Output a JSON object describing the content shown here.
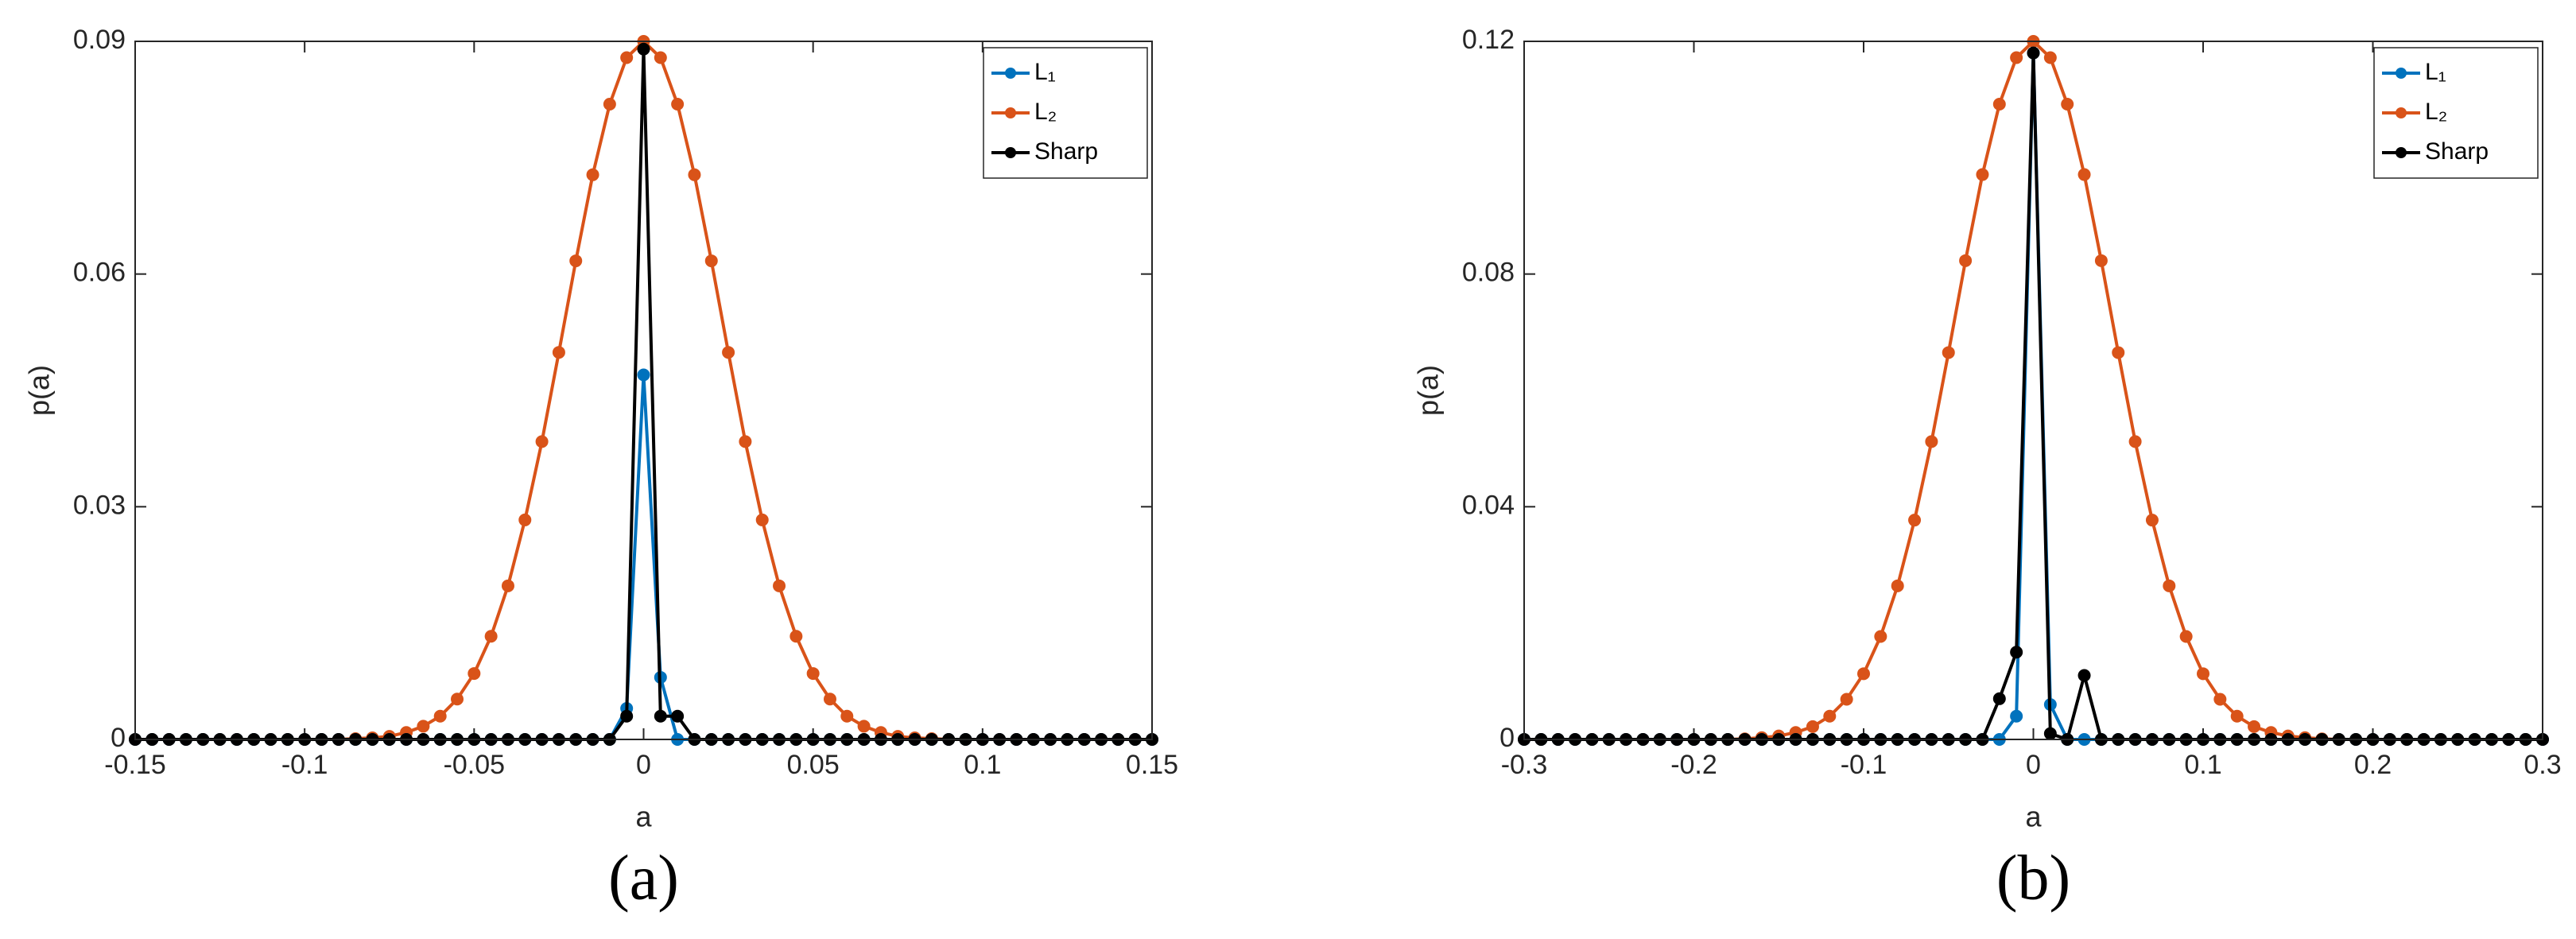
{
  "chart_data": [
    {
      "type": "line",
      "caption": "(a)",
      "xlabel": "a",
      "ylabel": "p(a)",
      "x": [
        -0.15,
        -0.145,
        -0.14,
        -0.135,
        -0.13,
        -0.125,
        -0.12,
        -0.115,
        -0.11,
        -0.105,
        -0.1,
        -0.095,
        -0.09,
        -0.085,
        -0.08,
        -0.075,
        -0.07,
        -0.065,
        -0.06,
        -0.055,
        -0.05,
        -0.045,
        -0.04,
        -0.035,
        -0.03,
        -0.025,
        -0.02,
        -0.015,
        -0.01,
        -0.005,
        0,
        0.005,
        0.01,
        0.015,
        0.02,
        0.025,
        0.03,
        0.035,
        0.04,
        0.045,
        0.05,
        0.055,
        0.06,
        0.065,
        0.07,
        0.075,
        0.08,
        0.085,
        0.09,
        0.095,
        0.1,
        0.105,
        0.11,
        0.115,
        0.12,
        0.125,
        0.13,
        0.135,
        0.14,
        0.145,
        0.15
      ],
      "series": [
        {
          "name": "L₂",
          "color": "#d95319",
          "values": [
            0,
            0,
            0,
            0,
            0,
            0,
            0,
            0,
            0,
            0,
            0,
            0,
            0,
            0.0001,
            0.0002,
            0.0004,
            0.0009,
            0.0017,
            0.003,
            0.0052,
            0.0085,
            0.0133,
            0.0198,
            0.0283,
            0.0384,
            0.0499,
            0.0617,
            0.0728,
            0.0819,
            0.0879,
            0.09,
            0.0879,
            0.0819,
            0.0728,
            0.0617,
            0.0499,
            0.0384,
            0.0283,
            0.0198,
            0.0133,
            0.0085,
            0.0052,
            0.003,
            0.0017,
            0.0009,
            0.0004,
            0.0002,
            0.0001,
            0,
            0,
            0,
            0,
            0,
            0,
            0,
            0,
            0,
            0,
            0,
            0,
            0
          ]
        },
        {
          "name": "L₁",
          "color": "#0072bd",
          "values": [
            0,
            0,
            0,
            0,
            0,
            0,
            0,
            0,
            0,
            0,
            0,
            0,
            0,
            0,
            0,
            0,
            0,
            0,
            0,
            0,
            0,
            0,
            0,
            0,
            0,
            0,
            0,
            0,
            0,
            0.004,
            0.047,
            0.008,
            0,
            0,
            0,
            0,
            0,
            0,
            0,
            0,
            0,
            0,
            0,
            0,
            0,
            0,
            0,
            0,
            0,
            0,
            0,
            0,
            0,
            0,
            0,
            0,
            0,
            0,
            0,
            0,
            0
          ]
        },
        {
          "name": "Sharp",
          "color": "#000000",
          "values": [
            0,
            0,
            0,
            0,
            0,
            0,
            0,
            0,
            0,
            0,
            0,
            0,
            0,
            0,
            0,
            0,
            0,
            0,
            0,
            0,
            0,
            0,
            0,
            0,
            0,
            0,
            0,
            0,
            0,
            0.003,
            0.089,
            0.003,
            0.003,
            0,
            0,
            0,
            0,
            0,
            0,
            0,
            0,
            0,
            0,
            0,
            0,
            0,
            0,
            0,
            0,
            0,
            0,
            0,
            0,
            0,
            0,
            0,
            0,
            0,
            0,
            0,
            0
          ]
        }
      ],
      "legend_order": [
        1,
        0,
        2
      ],
      "legend": "upper right",
      "xlim": [
        -0.15,
        0.15
      ],
      "xticks": [
        -0.15,
        -0.1,
        -0.05,
        0,
        0.05,
        0.1,
        0.15
      ],
      "ylim": [
        0,
        0.09
      ],
      "yticks": [
        0,
        0.03,
        0.06,
        0.09
      ]
    },
    {
      "type": "line",
      "caption": "(b)",
      "xlabel": "a",
      "ylabel": "p(a)",
      "x": [
        -0.3,
        -0.29,
        -0.28,
        -0.27,
        -0.26,
        -0.25,
        -0.24,
        -0.23,
        -0.22,
        -0.21,
        -0.2,
        -0.19,
        -0.18,
        -0.17,
        -0.16,
        -0.15,
        -0.14,
        -0.13,
        -0.12,
        -0.11,
        -0.1,
        -0.09,
        -0.08,
        -0.07,
        -0.06,
        -0.05,
        -0.04,
        -0.03,
        -0.02,
        -0.01,
        0,
        0.01,
        0.02,
        0.03,
        0.04,
        0.05,
        0.06,
        0.07,
        0.08,
        0.09,
        0.1,
        0.11,
        0.12,
        0.13,
        0.14,
        0.15,
        0.16,
        0.17,
        0.18,
        0.19,
        0.2,
        0.21,
        0.22,
        0.23,
        0.24,
        0.25,
        0.26,
        0.27,
        0.28,
        0.29,
        0.3
      ],
      "series": [
        {
          "name": "L₂",
          "color": "#d95319",
          "values": [
            0,
            0,
            0,
            0,
            0,
            0,
            0,
            0,
            0,
            0,
            0,
            0,
            0,
            0.0001,
            0.0003,
            0.0006,
            0.0012,
            0.0022,
            0.004,
            0.0069,
            0.0113,
            0.0177,
            0.0264,
            0.0377,
            0.0512,
            0.0665,
            0.0823,
            0.0971,
            0.1092,
            0.1172,
            0.12,
            0.1172,
            0.1092,
            0.0971,
            0.0823,
            0.0665,
            0.0512,
            0.0377,
            0.0264,
            0.0177,
            0.0113,
            0.0069,
            0.004,
            0.0022,
            0.0012,
            0.0006,
            0.0003,
            0.0001,
            0,
            0,
            0,
            0,
            0,
            0,
            0,
            0,
            0,
            0,
            0,
            0,
            0
          ]
        },
        {
          "name": "L₁",
          "color": "#0072bd",
          "values": [
            0,
            0,
            0,
            0,
            0,
            0,
            0,
            0,
            0,
            0,
            0,
            0,
            0,
            0,
            0,
            0,
            0,
            0,
            0,
            0,
            0,
            0,
            0,
            0,
            0,
            0,
            0,
            0,
            0,
            0.004,
            0.118,
            0.006,
            0,
            0,
            0,
            0,
            0,
            0,
            0,
            0,
            0,
            0,
            0,
            0,
            0,
            0,
            0,
            0,
            0,
            0,
            0,
            0,
            0,
            0,
            0,
            0,
            0,
            0,
            0,
            0,
            0
          ]
        },
        {
          "name": "Sharp",
          "color": "#000000",
          "values": [
            0,
            0,
            0,
            0,
            0,
            0,
            0,
            0,
            0,
            0,
            0,
            0,
            0,
            0,
            0,
            0,
            0,
            0,
            0,
            0,
            0,
            0,
            0,
            0,
            0,
            0,
            0,
            0,
            0.007,
            0.015,
            0.118,
            0.001,
            0,
            0.011,
            0,
            0,
            0,
            0,
            0,
            0,
            0,
            0,
            0,
            0,
            0,
            0,
            0,
            0,
            0,
            0,
            0,
            0,
            0,
            0,
            0,
            0,
            0,
            0,
            0,
            0,
            0
          ]
        }
      ],
      "legend_order": [
        1,
        0,
        2
      ],
      "legend": "upper right",
      "xlim": [
        -0.3,
        0.3
      ],
      "xticks": [
        -0.3,
        -0.2,
        -0.1,
        0,
        0.1,
        0.2,
        0.3
      ],
      "ylim": [
        0,
        0.12
      ],
      "yticks": [
        0,
        0.04,
        0.08,
        0.12
      ]
    }
  ]
}
